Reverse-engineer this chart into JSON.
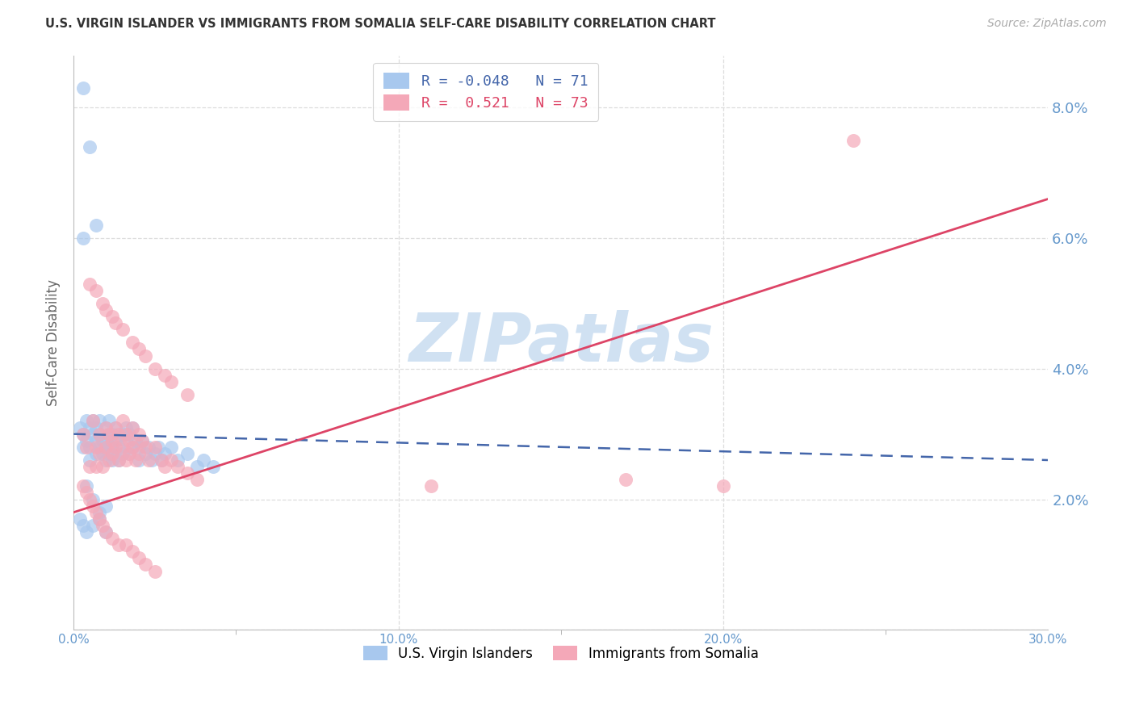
{
  "title": "U.S. VIRGIN ISLANDER VS IMMIGRANTS FROM SOMALIA SELF-CARE DISABILITY CORRELATION CHART",
  "source": "Source: ZipAtlas.com",
  "ylabel": "Self-Care Disability",
  "xlim": [
    0.0,
    0.3
  ],
  "ylim": [
    0.0,
    0.088
  ],
  "x_ticks": [
    0.0,
    0.1,
    0.2,
    0.3
  ],
  "x_tick_labels": [
    "0.0%",
    "10.0%",
    "20.0%",
    "30.0%"
  ],
  "y_ticks": [
    0.0,
    0.02,
    0.04,
    0.06,
    0.08
  ],
  "y_tick_labels": [
    "",
    "2.0%",
    "4.0%",
    "6.0%",
    "8.0%"
  ],
  "blue_color": "#A8C8EE",
  "pink_color": "#F4A8B8",
  "blue_line_color": "#4466AA",
  "pink_line_color": "#DD4466",
  "axis_color": "#6699CC",
  "grid_color": "#DDDDDD",
  "watermark": "ZIPatlas",
  "watermark_color": "#C8DCF0",
  "legend_R_blue": "-0.048",
  "legend_N_blue": "71",
  "legend_R_pink": "0.521",
  "legend_N_pink": "73",
  "blue_label": "U.S. Virgin Islanders",
  "pink_label": "Immigrants from Somalia",
  "blue_line_start_y": 0.03,
  "blue_line_end_y": 0.026,
  "pink_line_start_y": 0.018,
  "pink_line_end_y": 0.066,
  "blue_scatter_x": [
    0.002,
    0.003,
    0.003,
    0.004,
    0.004,
    0.005,
    0.005,
    0.005,
    0.006,
    0.006,
    0.007,
    0.007,
    0.007,
    0.008,
    0.008,
    0.008,
    0.009,
    0.009,
    0.01,
    0.01,
    0.01,
    0.01,
    0.011,
    0.011,
    0.011,
    0.012,
    0.012,
    0.012,
    0.013,
    0.013,
    0.014,
    0.014,
    0.015,
    0.015,
    0.016,
    0.016,
    0.017,
    0.017,
    0.018,
    0.018,
    0.019,
    0.02,
    0.02,
    0.021,
    0.022,
    0.023,
    0.024,
    0.025,
    0.026,
    0.027,
    0.028,
    0.03,
    0.032,
    0.035,
    0.038,
    0.04,
    0.043,
    0.003,
    0.005,
    0.007,
    0.002,
    0.003,
    0.004,
    0.006,
    0.008,
    0.01,
    0.004,
    0.006,
    0.008,
    0.01,
    0.003
  ],
  "blue_scatter_y": [
    0.031,
    0.03,
    0.028,
    0.029,
    0.032,
    0.028,
    0.031,
    0.026,
    0.03,
    0.032,
    0.029,
    0.031,
    0.027,
    0.03,
    0.028,
    0.032,
    0.029,
    0.027,
    0.031,
    0.029,
    0.026,
    0.028,
    0.03,
    0.027,
    0.032,
    0.028,
    0.03,
    0.026,
    0.029,
    0.031,
    0.028,
    0.026,
    0.03,
    0.027,
    0.029,
    0.031,
    0.027,
    0.03,
    0.028,
    0.031,
    0.029,
    0.028,
    0.026,
    0.029,
    0.027,
    0.028,
    0.026,
    0.027,
    0.028,
    0.026,
    0.027,
    0.028,
    0.026,
    0.027,
    0.025,
    0.026,
    0.025,
    0.083,
    0.074,
    0.062,
    0.017,
    0.016,
    0.015,
    0.016,
    0.017,
    0.015,
    0.022,
    0.02,
    0.018,
    0.019,
    0.06
  ],
  "pink_scatter_x": [
    0.003,
    0.004,
    0.005,
    0.006,
    0.007,
    0.007,
    0.008,
    0.008,
    0.009,
    0.01,
    0.01,
    0.011,
    0.011,
    0.012,
    0.012,
    0.013,
    0.013,
    0.014,
    0.014,
    0.015,
    0.015,
    0.016,
    0.016,
    0.017,
    0.017,
    0.018,
    0.018,
    0.019,
    0.02,
    0.02,
    0.021,
    0.022,
    0.023,
    0.025,
    0.027,
    0.028,
    0.03,
    0.032,
    0.035,
    0.038,
    0.005,
    0.007,
    0.009,
    0.01,
    0.012,
    0.013,
    0.015,
    0.018,
    0.02,
    0.022,
    0.025,
    0.028,
    0.03,
    0.035,
    0.003,
    0.004,
    0.005,
    0.006,
    0.007,
    0.008,
    0.009,
    0.01,
    0.012,
    0.014,
    0.016,
    0.018,
    0.02,
    0.022,
    0.025,
    0.24,
    0.11,
    0.17,
    0.2
  ],
  "pink_scatter_y": [
    0.03,
    0.028,
    0.025,
    0.032,
    0.028,
    0.025,
    0.03,
    0.027,
    0.025,
    0.031,
    0.028,
    0.03,
    0.026,
    0.029,
    0.027,
    0.031,
    0.028,
    0.026,
    0.03,
    0.032,
    0.028,
    0.03,
    0.026,
    0.029,
    0.027,
    0.031,
    0.028,
    0.026,
    0.03,
    0.027,
    0.029,
    0.028,
    0.026,
    0.028,
    0.026,
    0.025,
    0.026,
    0.025,
    0.024,
    0.023,
    0.053,
    0.052,
    0.05,
    0.049,
    0.048,
    0.047,
    0.046,
    0.044,
    0.043,
    0.042,
    0.04,
    0.039,
    0.038,
    0.036,
    0.022,
    0.021,
    0.02,
    0.019,
    0.018,
    0.017,
    0.016,
    0.015,
    0.014,
    0.013,
    0.013,
    0.012,
    0.011,
    0.01,
    0.009,
    0.075,
    0.022,
    0.023,
    0.022
  ]
}
